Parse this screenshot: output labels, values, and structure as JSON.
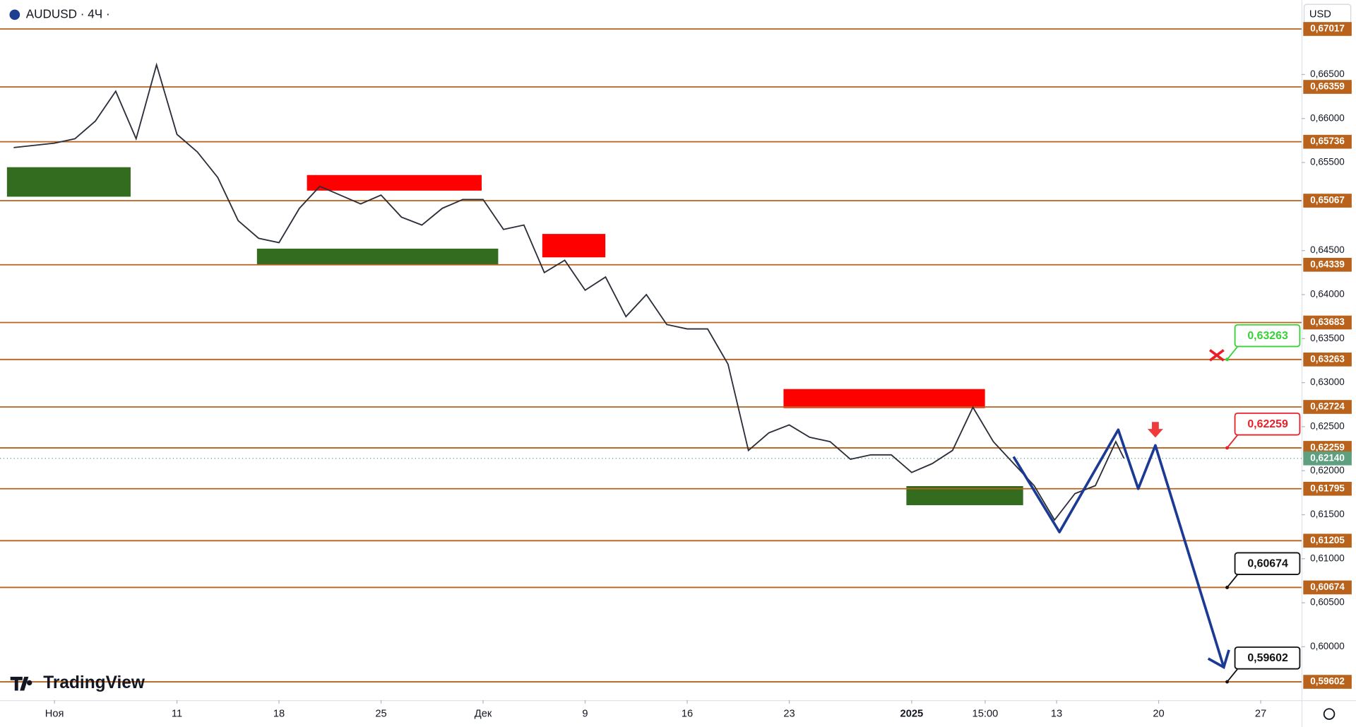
{
  "chart_data": {
    "type": "line",
    "title": "AUDUSD · 4Ч ·",
    "currency": "USD",
    "brand": "TradingView",
    "x": [
      -2,
      0,
      1,
      2,
      3,
      4,
      5,
      6,
      7,
      8,
      9,
      10,
      11,
      12,
      13,
      14,
      15,
      16,
      17,
      18,
      19,
      20,
      21,
      22,
      23,
      24,
      25,
      26,
      27,
      28,
      29,
      30,
      31,
      32,
      33,
      34,
      35,
      36,
      37,
      38,
      39,
      40,
      41,
      42,
      43,
      44,
      45,
      46,
      47,
      48,
      49,
      50,
      51,
      52,
      52.4
    ],
    "values": [
      0.6567,
      0.6572,
      0.6577,
      0.6597,
      0.6631,
      0.6577,
      0.6661,
      0.6582,
      0.6562,
      0.6533,
      0.6484,
      0.6464,
      0.6459,
      0.6498,
      0.6523,
      0.6513,
      0.6503,
      0.6513,
      0.6488,
      0.6479,
      0.6498,
      0.6508,
      0.6508,
      0.6474,
      0.6479,
      0.6425,
      0.6439,
      0.6405,
      0.642,
      0.6375,
      0.64,
      0.6366,
      0.6361,
      0.6361,
      0.6321,
      0.6223,
      0.6243,
      0.6252,
      0.6238,
      0.6233,
      0.6213,
      0.6218,
      0.6218,
      0.6198,
      0.6208,
      0.6223,
      0.6272,
      0.6233,
      0.6208,
      0.6183,
      0.6144,
      0.6174,
      0.6183,
      0.6233,
      0.6214
    ],
    "color": "#2a2e39",
    "xlim": [
      -2.67,
      61.1
    ],
    "ylim": [
      0.59394,
      0.67346
    ],
    "xticks": [
      {
        "value": 0,
        "label": "Ноя"
      },
      {
        "value": 6,
        "label": "11"
      },
      {
        "value": 11,
        "label": "18"
      },
      {
        "value": 16,
        "label": "25"
      },
      {
        "value": 21,
        "label": "Дек"
      },
      {
        "value": 26,
        "label": "9"
      },
      {
        "value": 31,
        "label": "16"
      },
      {
        "value": 36,
        "label": "23"
      },
      {
        "value": 42,
        "label": "2025"
      },
      {
        "value": 45.6,
        "label": "15:00"
      },
      {
        "value": 49.1,
        "label": "13"
      },
      {
        "value": 54.1,
        "label": "20"
      },
      {
        "value": 59.1,
        "label": "27"
      }
    ],
    "yticks": [
      {
        "value": 0.665,
        "label": "0,66500"
      },
      {
        "value": 0.66,
        "label": "0,66000"
      },
      {
        "value": 0.655,
        "label": "0,65500"
      },
      {
        "value": 0.645,
        "label": "0,64500"
      },
      {
        "value": 0.64,
        "label": "0,64000"
      },
      {
        "value": 0.635,
        "label": "0,63500"
      },
      {
        "value": 0.63,
        "label": "0,63000"
      },
      {
        "value": 0.625,
        "label": "0,62500"
      },
      {
        "value": 0.62,
        "label": "0,62000"
      },
      {
        "value": 0.615,
        "label": "0,61500"
      },
      {
        "value": 0.61,
        "label": "0,61000"
      },
      {
        "value": 0.605,
        "label": "0,60500"
      },
      {
        "value": 0.6,
        "label": "0,60000"
      }
    ],
    "level_color": "#b8621b",
    "levels": [
      {
        "value": 0.67017,
        "label": "0,67017"
      },
      {
        "value": 0.66359,
        "label": "0,66359"
      },
      {
        "value": 0.65736,
        "label": "0,65736"
      },
      {
        "value": 0.65067,
        "label": "0,65067"
      },
      {
        "value": 0.64339,
        "label": "0,64339"
      },
      {
        "value": 0.63683,
        "label": "0,63683"
      },
      {
        "value": 0.63263,
        "label": "0,63263"
      },
      {
        "value": 0.62724,
        "label": "0,62724"
      },
      {
        "value": 0.62259,
        "label": "0,62259"
      },
      {
        "value": 0.61795,
        "label": "0,61795"
      },
      {
        "value": 0.61205,
        "label": "0,61205"
      },
      {
        "value": 0.60674,
        "label": "0,60674"
      },
      {
        "value": 0.59602,
        "label": "0,59602"
      }
    ],
    "current_price": {
      "value": 0.6214,
      "label": "0,62140",
      "color": "#5e9f80"
    },
    "zones": [
      {
        "x": [
          -2.33,
          3.73
        ],
        "y": [
          0.65112,
          0.65447
        ],
        "color": "#336b1f"
      },
      {
        "x": [
          12.37,
          20.93
        ],
        "y": [
          0.65181,
          0.65358
        ],
        "color": "#ff0000"
      },
      {
        "x": [
          9.92,
          21.74
        ],
        "y": [
          0.64335,
          0.64522
        ],
        "color": "#336b1f"
      },
      {
        "x": [
          23.9,
          26.99
        ],
        "y": [
          0.64423,
          0.64689
        ],
        "color": "#ff0000"
      },
      {
        "x": [
          35.72,
          45.59
        ],
        "y": [
          0.62711,
          0.62927
        ],
        "color": "#ff0000"
      },
      {
        "x": [
          41.74,
          47.46
        ],
        "y": [
          0.61608,
          0.61825
        ],
        "color": "#336b1f"
      }
    ],
    "projection": {
      "x": [
        46.99,
        49.24,
        52.12,
        53.1,
        53.94,
        57.29
      ],
      "y": [
        0.62159,
        0.61303,
        0.62465,
        0.61795,
        0.62287,
        0.59768
      ],
      "color": "#1b3a94"
    },
    "callouts": [
      {
        "value": 0.63263,
        "label": "0,63263",
        "color": "#35d335"
      },
      {
        "value": 0.62259,
        "label": "0,62259",
        "color": "#e8202a"
      },
      {
        "value": 0.60674,
        "label": "0,60674",
        "color": "#111111"
      },
      {
        "value": 0.59602,
        "label": "0,59602",
        "color": "#111111"
      }
    ]
  }
}
